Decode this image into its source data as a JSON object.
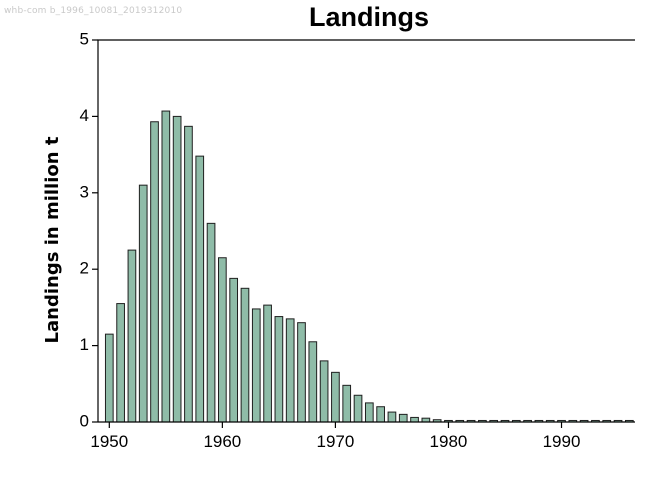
{
  "watermark": "whb-com b_1996_10081_2019312010",
  "chart_data": {
    "type": "bar",
    "title": "Landings",
    "xlabel": "",
    "ylabel": "Landings in million t",
    "xlim": [
      1949,
      1996.5
    ],
    "ylim": [
      0,
      5
    ],
    "x_ticks": [
      1950,
      1960,
      1970,
      1980,
      1990
    ],
    "y_ticks": [
      0,
      1,
      2,
      3,
      4,
      5
    ],
    "grid": false,
    "colors": {
      "bar_fill": "#8fbca8",
      "bar_stroke": "#1f1f1f"
    },
    "x": [
      1950,
      1951,
      1952,
      1953,
      1954,
      1955,
      1956,
      1957,
      1958,
      1959,
      1960,
      1961,
      1962,
      1963,
      1964,
      1965,
      1966,
      1967,
      1968,
      1969,
      1970,
      1971,
      1972,
      1973,
      1974,
      1975,
      1976,
      1977,
      1978,
      1979,
      1980,
      1981,
      1982,
      1983,
      1984,
      1985,
      1986,
      1987,
      1988,
      1989,
      1990,
      1991,
      1992,
      1993,
      1994,
      1995,
      1996
    ],
    "values": [
      1.15,
      1.55,
      2.25,
      3.1,
      3.93,
      4.07,
      4.0,
      3.87,
      3.48,
      2.6,
      2.15,
      1.88,
      1.75,
      1.48,
      1.53,
      1.38,
      1.35,
      1.3,
      1.05,
      0.8,
      0.65,
      0.48,
      0.35,
      0.25,
      0.2,
      0.13,
      0.1,
      0.06,
      0.05,
      0.03,
      0.02,
      0.02,
      0.02,
      0.02,
      0.02,
      0.02,
      0.02,
      0.02,
      0.02,
      0.02,
      0.02,
      0.02,
      0.02,
      0.02,
      0.02,
      0.02,
      0.02
    ]
  }
}
